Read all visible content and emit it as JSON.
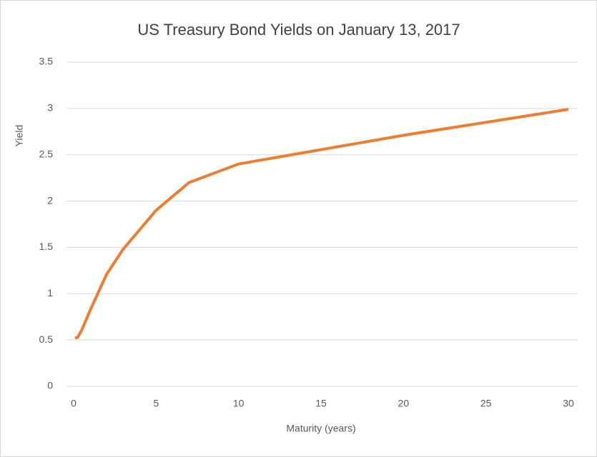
{
  "chart_data": {
    "type": "line",
    "title": "US Treasury Bond Yields on January 13, 2017",
    "x_label": "Maturity (years)",
    "y_label": "Yield",
    "x": [
      0.083,
      0.25,
      0.5,
      1,
      2,
      3,
      5,
      7,
      10,
      20,
      30
    ],
    "series": [
      {
        "name": "Yield",
        "color": "#ed7d31",
        "values": [
          0.52,
          0.53,
          0.61,
          0.82,
          1.21,
          1.48,
          1.9,
          2.2,
          2.4,
          2.71,
          2.99
        ]
      }
    ],
    "xlim": [
      0,
      30
    ],
    "xticks": [
      0,
      5,
      10,
      15,
      20,
      25,
      30
    ],
    "ylim": [
      0,
      3.5
    ],
    "yticks": [
      0,
      0.5,
      1,
      1.5,
      2,
      2.5,
      3,
      3.5
    ],
    "grid": true
  }
}
